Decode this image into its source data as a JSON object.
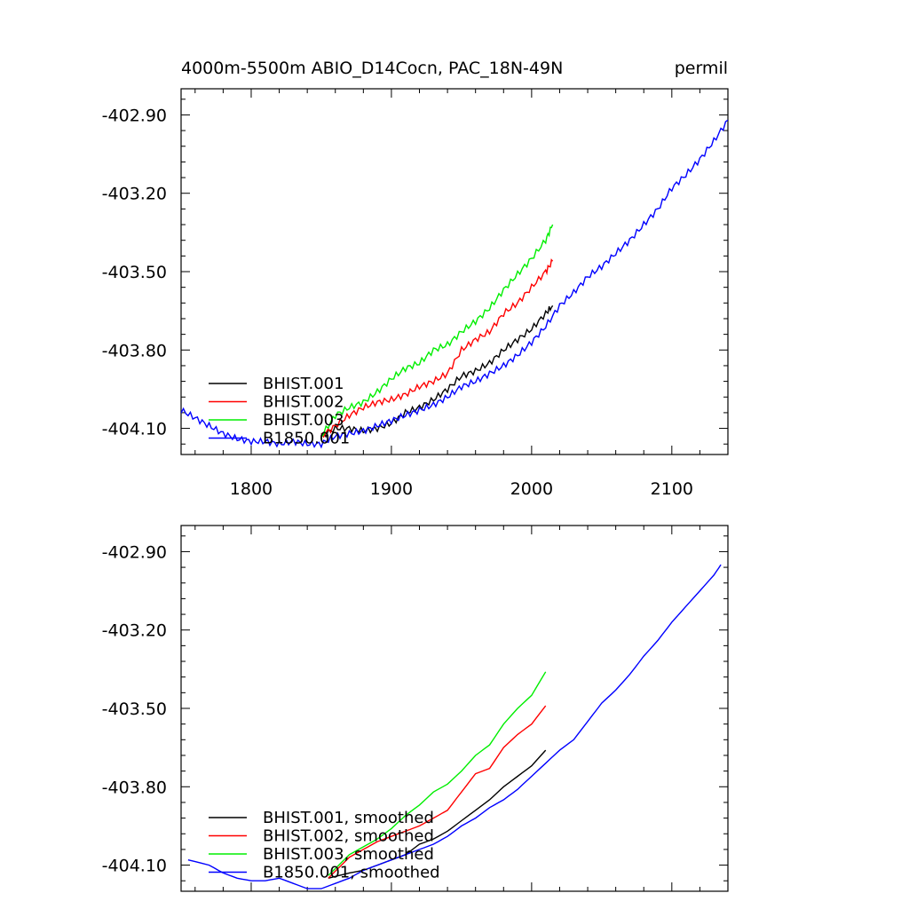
{
  "chart_data": [
    {
      "type": "line",
      "title_left": "4000m-5500m ABIO_D14Cocn, PAC_18N-49N",
      "title_right": "permil",
      "xlim": [
        1750,
        2140
      ],
      "ylim": [
        -404.2,
        -402.8
      ],
      "x_ticks": [
        1800,
        1900,
        2000,
        2100
      ],
      "y_ticks": [
        -402.9,
        -403.2,
        -403.5,
        -403.8,
        -404.1
      ],
      "y_tick_labels": [
        "-402.90",
        "-403.20",
        "-403.50",
        "-403.80",
        "-404.10"
      ],
      "x_tick_labels": [
        "1800",
        "1900",
        "2000",
        "2100"
      ],
      "legend_position": "bottom-left",
      "series": [
        {
          "name": "BHIST.001",
          "color": "#000000",
          "x": [
            1850,
            1860,
            1870,
            1880,
            1890,
            1900,
            1910,
            1920,
            1930,
            1940,
            1950,
            1960,
            1970,
            1980,
            1990,
            2000,
            2010,
            2015
          ],
          "y": [
            -404.13,
            -404.1,
            -404.1,
            -404.11,
            -404.1,
            -404.08,
            -404.04,
            -404.02,
            -403.99,
            -403.95,
            -403.9,
            -403.88,
            -403.85,
            -403.8,
            -403.76,
            -403.72,
            -403.66,
            -403.63
          ]
        },
        {
          "name": "BHIST.002",
          "color": "#ff0000",
          "x": [
            1850,
            1860,
            1870,
            1880,
            1890,
            1900,
            1910,
            1920,
            1930,
            1940,
            1950,
            1960,
            1970,
            1980,
            1990,
            2000,
            2010,
            2015
          ],
          "y": [
            -404.13,
            -404.09,
            -404.05,
            -404.02,
            -404.0,
            -403.99,
            -403.97,
            -403.94,
            -403.92,
            -403.89,
            -403.8,
            -403.76,
            -403.73,
            -403.66,
            -403.62,
            -403.56,
            -403.5,
            -403.46
          ]
        },
        {
          "name": "BHIST.003",
          "color": "#00ee00",
          "x": [
            1850,
            1860,
            1870,
            1880,
            1890,
            1900,
            1910,
            1920,
            1930,
            1940,
            1950,
            1960,
            1970,
            1980,
            1990,
            2000,
            2010,
            2015
          ],
          "y": [
            -404.13,
            -404.05,
            -404.02,
            -404.0,
            -403.96,
            -403.91,
            -403.87,
            -403.85,
            -403.8,
            -403.78,
            -403.73,
            -403.69,
            -403.64,
            -403.57,
            -403.51,
            -403.45,
            -403.38,
            -403.32
          ]
        },
        {
          "name": "B1850.001",
          "color": "#0000ff",
          "x": [
            1750,
            1760,
            1770,
            1780,
            1790,
            1800,
            1810,
            1820,
            1830,
            1840,
            1850,
            1860,
            1870,
            1880,
            1890,
            1900,
            1910,
            1920,
            1930,
            1940,
            1950,
            1960,
            1970,
            1980,
            1990,
            2000,
            2010,
            2020,
            2030,
            2040,
            2050,
            2060,
            2070,
            2080,
            2090,
            2100,
            2110,
            2120,
            2130,
            2140
          ],
          "y": [
            -404.03,
            -404.06,
            -404.09,
            -404.12,
            -404.14,
            -404.15,
            -404.15,
            -404.16,
            -404.15,
            -404.16,
            -404.16,
            -404.13,
            -404.12,
            -404.11,
            -404.09,
            -404.07,
            -404.05,
            -404.03,
            -404.01,
            -403.98,
            -403.94,
            -403.92,
            -403.89,
            -403.86,
            -403.82,
            -403.77,
            -403.71,
            -403.63,
            -403.58,
            -403.52,
            -403.48,
            -403.43,
            -403.38,
            -403.32,
            -403.26,
            -403.18,
            -403.13,
            -403.07,
            -403.0,
            -402.92
          ]
        }
      ]
    },
    {
      "type": "line",
      "xlim": [
        1750,
        2140
      ],
      "ylim": [
        -404.2,
        -402.8
      ],
      "x_ticks": [
        1800,
        1900,
        2000,
        2100
      ],
      "y_ticks": [
        -402.9,
        -403.2,
        -403.5,
        -403.8,
        -404.1
      ],
      "y_tick_labels": [
        "-402.90",
        "-403.20",
        "-403.50",
        "-403.80",
        "-404.10"
      ],
      "legend_position": "bottom-left",
      "series": [
        {
          "name": "BHIST.001, smoothed",
          "color": "#000000",
          "x": [
            1855,
            1870,
            1880,
            1890,
            1900,
            1910,
            1920,
            1930,
            1940,
            1950,
            1960,
            1970,
            1980,
            1990,
            2000,
            2010
          ],
          "y": [
            -404.15,
            -404.13,
            -404.12,
            -404.1,
            -404.08,
            -404.06,
            -404.02,
            -404.0,
            -403.97,
            -403.93,
            -403.89,
            -403.85,
            -403.8,
            -403.76,
            -403.72,
            -403.66
          ]
        },
        {
          "name": "BHIST.002, smoothed",
          "color": "#ff0000",
          "x": [
            1855,
            1870,
            1880,
            1890,
            1900,
            1910,
            1920,
            1930,
            1940,
            1950,
            1960,
            1970,
            1980,
            1990,
            2000,
            2010
          ],
          "y": [
            -404.15,
            -404.07,
            -404.04,
            -404.01,
            -403.99,
            -403.97,
            -403.95,
            -403.92,
            -403.89,
            -403.82,
            -403.75,
            -403.73,
            -403.65,
            -403.6,
            -403.56,
            -403.49
          ]
        },
        {
          "name": "BHIST.003, smoothed",
          "color": "#00ee00",
          "x": [
            1855,
            1870,
            1880,
            1890,
            1900,
            1910,
            1920,
            1930,
            1940,
            1950,
            1960,
            1970,
            1980,
            1990,
            2000,
            2010
          ],
          "y": [
            -404.14,
            -404.06,
            -404.03,
            -404.0,
            -403.96,
            -403.91,
            -403.87,
            -403.82,
            -403.79,
            -403.74,
            -403.68,
            -403.64,
            -403.56,
            -403.5,
            -403.45,
            -403.36
          ]
        },
        {
          "name": "B1850.001, smoothed",
          "color": "#0000ff",
          "x": [
            1755,
            1770,
            1780,
            1790,
            1800,
            1810,
            1820,
            1830,
            1840,
            1850,
            1860,
            1870,
            1880,
            1890,
            1900,
            1910,
            1920,
            1930,
            1940,
            1950,
            1960,
            1970,
            1980,
            1990,
            2000,
            2010,
            2020,
            2030,
            2040,
            2050,
            2060,
            2070,
            2080,
            2090,
            2100,
            2110,
            2120,
            2130,
            2135
          ],
          "y": [
            -404.08,
            -404.1,
            -404.13,
            -404.15,
            -404.16,
            -404.16,
            -404.15,
            -404.17,
            -404.19,
            -404.19,
            -404.17,
            -404.15,
            -404.12,
            -404.1,
            -404.08,
            -404.06,
            -404.04,
            -404.02,
            -403.99,
            -403.95,
            -403.92,
            -403.88,
            -403.85,
            -403.81,
            -403.76,
            -403.71,
            -403.66,
            -403.62,
            -403.55,
            -403.48,
            -403.43,
            -403.37,
            -403.3,
            -403.24,
            -403.17,
            -403.11,
            -403.05,
            -402.99,
            -402.95
          ]
        }
      ]
    }
  ]
}
